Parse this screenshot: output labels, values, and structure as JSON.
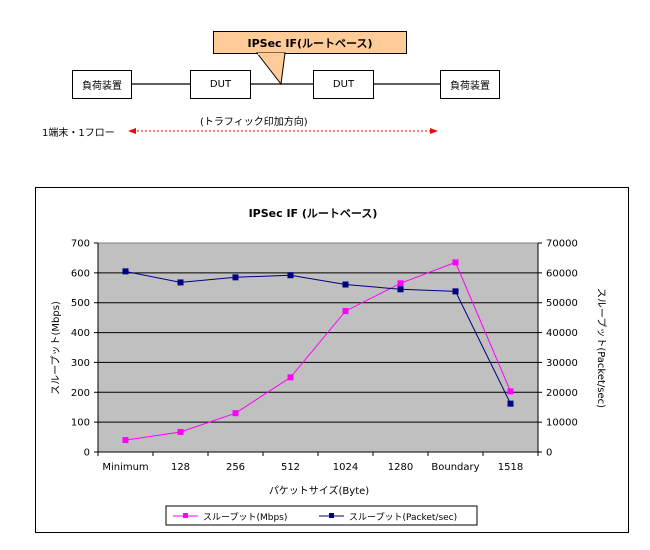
{
  "diagram": {
    "callout_label": "IPSec IF(ルートベース)",
    "left_device": "負荷装置",
    "dut1": "DUT",
    "dut2": "DUT",
    "right_device": "負荷装置",
    "flow_label": "1端末・1フロー",
    "direction_label": "(トラフィック印加方向)"
  },
  "colors": {
    "mbps_series": "#ff00ff",
    "pps_series": "#000080",
    "plot_bg": "#c0c0c0",
    "callout_bg": "#ffcc99",
    "arrow": "#ff0000"
  },
  "chart_data": {
    "type": "line",
    "title": "IPSec IF (ルートベース)",
    "xlabel": "パケットサイズ(Byte)",
    "ylabel_left": "スループット(Mbps)",
    "ylabel_right": "スループット(Packet/sec)",
    "categories": [
      "Minimum",
      "128",
      "256",
      "512",
      "1024",
      "1280",
      "Boundary",
      "1518"
    ],
    "y_left_range": [
      0,
      700
    ],
    "y_left_ticks": [
      "0",
      "100",
      "200",
      "300",
      "400",
      "500",
      "600",
      "700"
    ],
    "y_right_range": [
      0,
      70000
    ],
    "y_right_ticks": [
      "0",
      "10000",
      "20000",
      "30000",
      "40000",
      "50000",
      "60000",
      "70000"
    ],
    "grid": true,
    "legend_position": "bottom",
    "series": [
      {
        "name": "スループット(Mbps)",
        "axis": "left",
        "values": [
          40,
          67,
          130,
          250,
          472,
          565,
          635,
          203
        ]
      },
      {
        "name": "スループット(Packet/sec)",
        "axis": "right",
        "values": [
          60500,
          56800,
          58500,
          59200,
          56100,
          54500,
          53800,
          16200
        ]
      }
    ]
  }
}
